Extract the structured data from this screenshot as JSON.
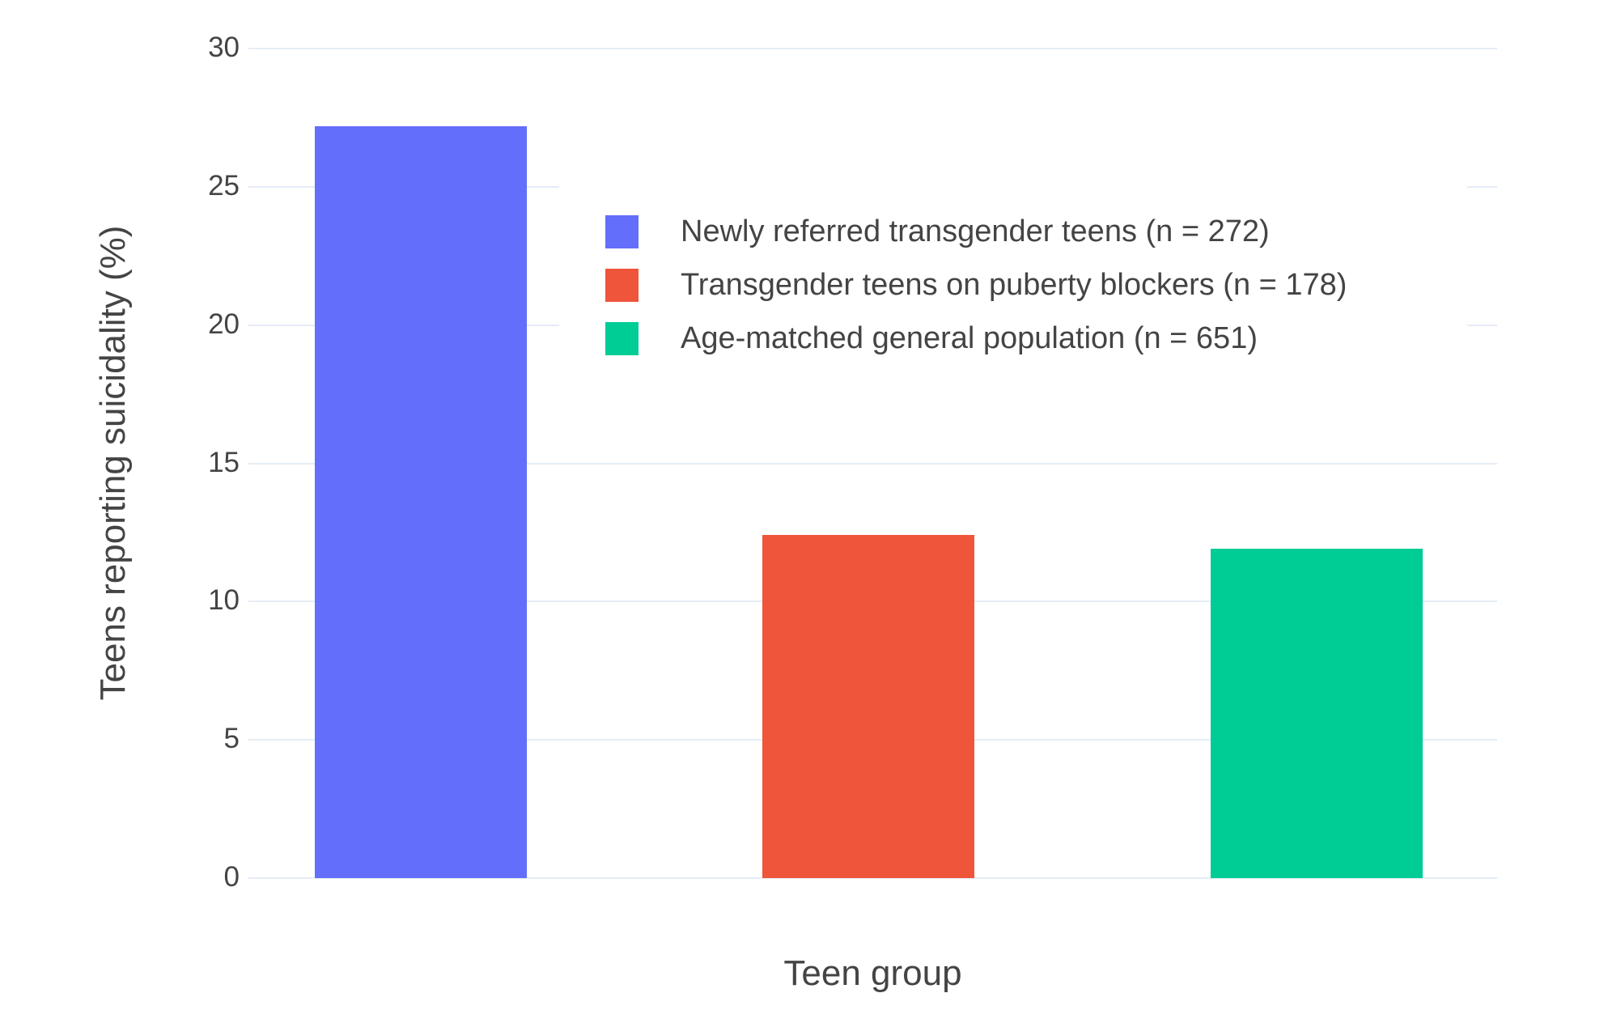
{
  "chart_data": {
    "type": "bar",
    "title": "",
    "xlabel": "Teen group",
    "ylabel": "Teens reporting suicidality (%)",
    "categories": [
      "Newly referred transgender teens (n = 272)",
      "Transgender teens on puberty blockers (n = 178)",
      "Age-matched general population (n = 651)"
    ],
    "values": [
      27.2,
      12.4,
      11.9
    ],
    "colors": [
      "#636EFA",
      "#EF553B",
      "#00CC96"
    ],
    "ylim": [
      0,
      30
    ],
    "yticks": [
      0,
      5,
      10,
      15,
      20,
      25,
      30
    ],
    "xticks": [],
    "grid": true,
    "legend": {
      "position": "inside upper-center",
      "background": "#FFFFFF"
    }
  },
  "theme": {
    "background_color": "#FFFFFF",
    "grid_color": "#E5ECF6",
    "text_color": "#444444"
  }
}
